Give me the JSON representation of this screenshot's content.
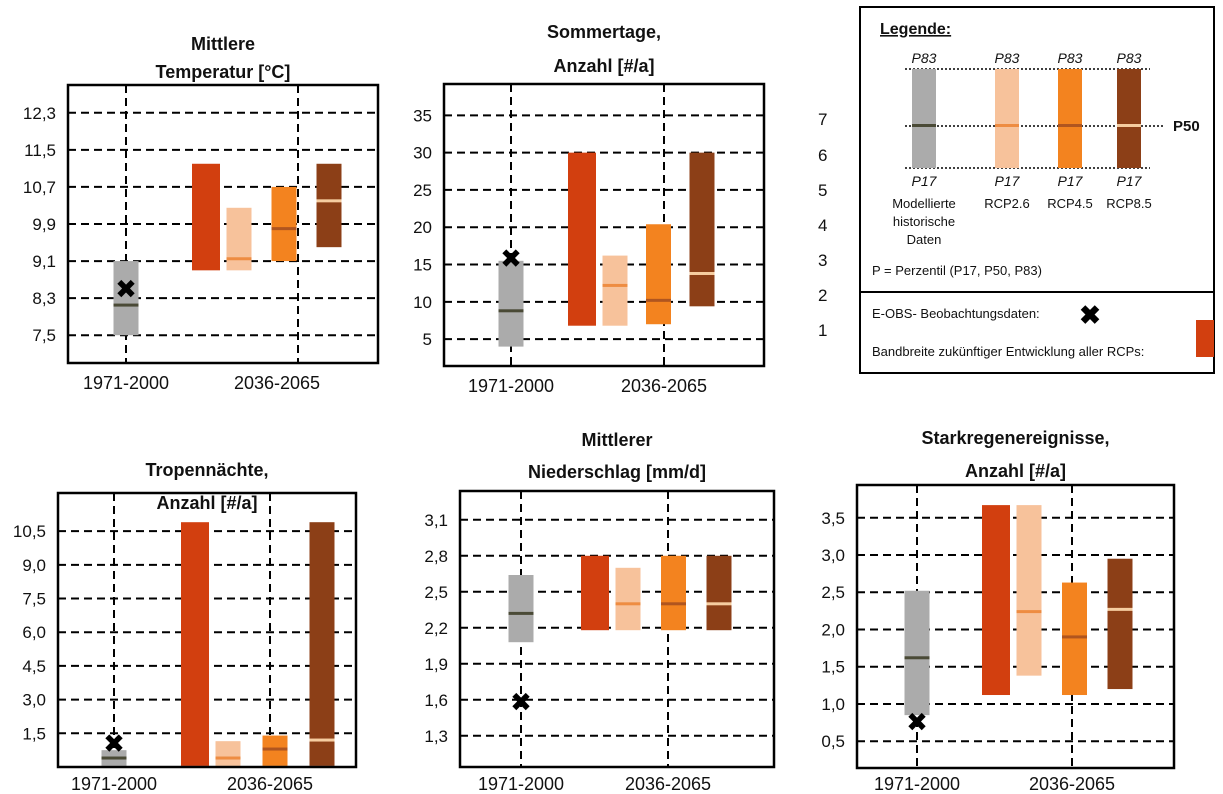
{
  "colors": {
    "hist_fill": "#ababab",
    "hist_median": "#4a4a36",
    "range_fill": "#d23f0f",
    "rcp26_fill": "#f7c29b",
    "rcp26_median": "#ee8c42",
    "rcp45_fill": "#f3831f",
    "rcp45_median": "#b0551f",
    "rcp85_fill": "#8c3f17",
    "rcp85_median": "#f6cda0",
    "obs_marker": "#000000"
  },
  "chart_data": [
    {
      "type": "box",
      "title": [
        "Mittlere",
        "Temperatur [°C]"
      ],
      "yticks": [
        "12,3",
        "11,5",
        "10,7",
        "9,9",
        "9,1",
        "8,3",
        "7,5"
      ],
      "ytick_values": [
        12.3,
        11.5,
        10.7,
        9.9,
        9.1,
        8.3,
        7.5
      ],
      "ylim": [
        6.9,
        12.9
      ],
      "xlabels": [
        "1971-2000",
        "2036-2065"
      ],
      "historical": {
        "p17": 7.5,
        "p50": 8.15,
        "p83": 9.1
      },
      "observation": 8.5,
      "range_all_rcps": {
        "min": 8.9,
        "max": 11.2
      },
      "rcp26": {
        "p17": 8.9,
        "p50": 9.15,
        "p83": 10.25
      },
      "rcp45": {
        "p17": 9.1,
        "p50": 9.8,
        "p83": 10.7
      },
      "rcp85": {
        "p17": 9.4,
        "p50": 10.4,
        "p83": 11.2
      }
    },
    {
      "type": "box",
      "title": [
        "Sommertage,",
        "Anzahl [#/a]"
      ],
      "yticks": [
        "35",
        "30",
        "25",
        "20",
        "15",
        "10",
        "5"
      ],
      "ytick_values": [
        35,
        30,
        25,
        20,
        15,
        10,
        5
      ],
      "ylim": [
        1.4,
        39.2
      ],
      "xlabels": [
        "1971-2000",
        "2036-2065"
      ],
      "historical": {
        "p17": 4,
        "p50": 8.8,
        "p83": 15.5
      },
      "observation": 15.8,
      "range_all_rcps": {
        "min": 6.8,
        "max": 30
      },
      "rcp26": {
        "p17": 6.8,
        "p50": 12.2,
        "p83": 16.2
      },
      "rcp45": {
        "p17": 7,
        "p50": 10.2,
        "p83": 20.4
      },
      "rcp85": {
        "p17": 9.4,
        "p50": 13.8,
        "p83": 30
      }
    },
    {
      "type": "box",
      "title": [
        "Tropennächte,",
        "Anzahl [#/a]"
      ],
      "yticks": [
        "10,5",
        "9,0",
        "7,5",
        "6,0",
        "4,5",
        "3,0",
        "1,5"
      ],
      "ytick_values": [
        10.5,
        9.0,
        7.5,
        6.0,
        4.5,
        3.0,
        1.5
      ],
      "ylim": [
        0,
        12.2
      ],
      "xlabels": [
        "1971-2000",
        "2036-2065"
      ],
      "historical": {
        "p17": 0.05,
        "p50": 0.4,
        "p83": 0.75
      },
      "observation": 1.05,
      "range_all_rcps": {
        "min": 0.05,
        "max": 10.9
      },
      "rcp26": {
        "p17": 0.05,
        "p50": 0.4,
        "p83": 1.15
      },
      "rcp45": {
        "p17": 0.05,
        "p50": 0.8,
        "p83": 1.4
      },
      "rcp85": {
        "p17": 0.05,
        "p50": 1.2,
        "p83": 10.9
      }
    },
    {
      "type": "box",
      "title": [
        "Mittlerer",
        "Niederschlag [mm/d]"
      ],
      "yticks": [
        "3,1",
        "2,8",
        "2,5",
        "2,2",
        "1,9",
        "1,6",
        "1,3"
      ],
      "ytick_values": [
        3.1,
        2.8,
        2.5,
        2.2,
        1.9,
        1.6,
        1.3
      ],
      "ylim": [
        1.04,
        3.34
      ],
      "xlabels": [
        "1971-2000",
        "2036-2065"
      ],
      "historical": {
        "p17": 2.08,
        "p50": 2.32,
        "p83": 2.64
      },
      "observation": 1.58,
      "range_all_rcps": {
        "min": 2.18,
        "max": 2.8
      },
      "rcp26": {
        "p17": 2.18,
        "p50": 2.4,
        "p83": 2.7
      },
      "rcp45": {
        "p17": 2.18,
        "p50": 2.4,
        "p83": 2.8
      },
      "rcp85": {
        "p17": 2.18,
        "p50": 2.4,
        "p83": 2.8
      }
    },
    {
      "type": "box",
      "title": [
        "Starkregenereignisse,",
        "Anzahl [#/a]"
      ],
      "yticks": [
        "3,5",
        "3,0",
        "2,5",
        "2,0",
        "1,5",
        "1,0",
        "0,5"
      ],
      "ytick_values": [
        3.5,
        3.0,
        2.5,
        2.0,
        1.5,
        1.0,
        0.5
      ],
      "ylim": [
        0.14,
        3.94
      ],
      "xlabels": [
        "1971-2000",
        "2036-2065"
      ],
      "historical": {
        "p17": 0.85,
        "p50": 1.62,
        "p83": 2.52
      },
      "observation": 0.76,
      "range_all_rcps": {
        "min": 1.12,
        "max": 3.67
      },
      "rcp26": {
        "p17": 1.38,
        "p50": 2.24,
        "p83": 3.67
      },
      "rcp45": {
        "p17": 1.12,
        "p50": 1.9,
        "p83": 2.63
      },
      "rcp85": {
        "p17": 1.2,
        "p50": 2.27,
        "p83": 2.95
      }
    }
  ],
  "partial_axis_ticks": [
    "7",
    "6",
    "5",
    "4",
    "3",
    "2",
    "1"
  ],
  "legend": {
    "title": "Legende:",
    "p83": "P83",
    "p17": "P17",
    "p50": "P50",
    "hist_label": [
      "Modellierte",
      "historische",
      "Daten"
    ],
    "rcp_labels": [
      "RCP2.6",
      "RCP4.5",
      "RCP8.5"
    ],
    "perzentil_note": "P = Perzentil (P17, P50, P83)",
    "obs_text": "E-OBS- Beobachtungsdaten:",
    "range_text": "Bandbreite zukünftiger Entwicklung aller RCPs:"
  }
}
